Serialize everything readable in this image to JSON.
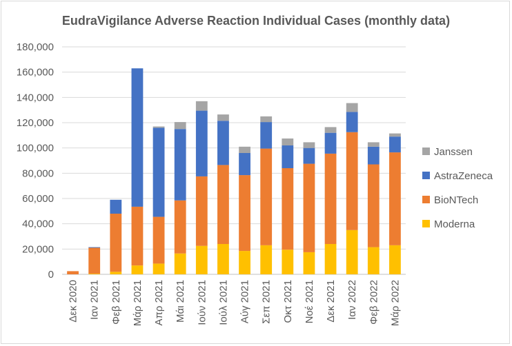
{
  "chart_data": {
    "type": "bar",
    "stacked": true,
    "title": "EudraVigilance Adverse Reaction Individual Cases (monthly data)",
    "xlabel": "",
    "ylabel": "",
    "ylim": [
      0,
      180000
    ],
    "yticks": [
      0,
      20000,
      40000,
      60000,
      80000,
      100000,
      120000,
      140000,
      160000,
      180000
    ],
    "ytick_labels": [
      "0",
      "20,000",
      "40,000",
      "60,000",
      "80,000",
      "100,000",
      "120,000",
      "140,000",
      "160,000",
      "180,000"
    ],
    "grid": true,
    "legend_position": "right",
    "categories": [
      "Δεκ 2020",
      "Ιαν 2021",
      "Φεβ 2021",
      "Μάρ 2021",
      "Απρ 2021",
      "Μάι 2021",
      "Ιούν 2021",
      "Ιούλ 2021",
      "Αύγ 2021",
      "Σεπ 2021",
      "Οκτ 2021",
      "Νοέ 2021",
      "Δεκ 2021",
      "Ιαν 2022",
      "Φεβ 2022",
      "Μάρ 2022"
    ],
    "series": [
      {
        "name": "Moderna",
        "color": "#ffc000",
        "values": [
          0,
          500,
          2000,
          7000,
          8500,
          16500,
          22500,
          24000,
          18500,
          23000,
          19500,
          17500,
          24000,
          35000,
          21500,
          23000
        ]
      },
      {
        "name": "BioNTech",
        "color": "#ed7d31",
        "values": [
          2500,
          20500,
          46000,
          46500,
          37000,
          42000,
          55000,
          62500,
          60000,
          76500,
          64500,
          70000,
          71500,
          77500,
          65500,
          73500
        ]
      },
      {
        "name": "AstraZeneca",
        "color": "#4472c4",
        "values": [
          0,
          500,
          11000,
          109500,
          70500,
          56500,
          52000,
          35000,
          17500,
          21000,
          18000,
          12500,
          16500,
          16000,
          14000,
          12500
        ]
      },
      {
        "name": "Janssen",
        "color": "#a5a5a5",
        "values": [
          0,
          0,
          0,
          0,
          1000,
          5500,
          7500,
          5000,
          5000,
          4500,
          5500,
          4500,
          4500,
          7000,
          3500,
          2500
        ]
      }
    ],
    "legend_order": [
      "Janssen",
      "AstraZeneca",
      "BioNTech",
      "Moderna"
    ]
  }
}
